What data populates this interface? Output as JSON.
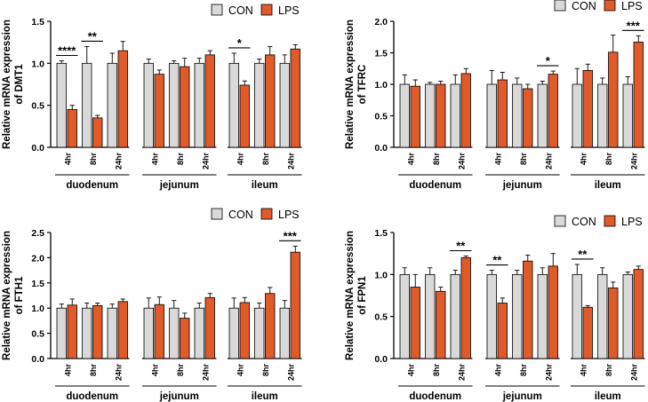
{
  "figure": {
    "legend": {
      "con": "CON",
      "lps": "LPS"
    },
    "colors": {
      "con": "#d9d9d9",
      "lps": "#e05a2a",
      "axis": "#000000"
    }
  },
  "chart_data": [
    {
      "id": "dmt1",
      "type": "bar",
      "ylabel_line1": "Relative mRNA expression",
      "ylabel_line2": "of DMT1",
      "ylim": [
        0,
        1.5
      ],
      "yticks": [
        "0.0",
        "0.5",
        "1.0",
        "1.5"
      ],
      "ytick_values": [
        0,
        0.5,
        1.0,
        1.5
      ],
      "groups": [
        {
          "name": "duodenum",
          "timepoints": [
            "4hr",
            "8hr",
            "24hr"
          ]
        },
        {
          "name": "jejunum",
          "timepoints": [
            "4hr",
            "8hr",
            "24hr"
          ]
        },
        {
          "name": "ileum",
          "timepoints": [
            "4hr",
            "8hr",
            "24hr"
          ]
        }
      ],
      "series": [
        {
          "name": "CON",
          "values": [
            1.0,
            1.0,
            1.0,
            1.0,
            1.0,
            1.0,
            1.0,
            1.0,
            1.0
          ],
          "errors": [
            0.03,
            0.2,
            0.12,
            0.05,
            0.03,
            0.06,
            0.12,
            0.05,
            0.1
          ]
        },
        {
          "name": "LPS",
          "values": [
            0.45,
            0.35,
            1.15,
            0.87,
            0.96,
            1.1,
            0.74,
            1.1,
            1.17
          ],
          "errors": [
            0.05,
            0.03,
            0.11,
            0.05,
            0.1,
            0.05,
            0.05,
            0.1,
            0.05
          ]
        }
      ],
      "significance": [
        {
          "bar_index": 0,
          "label": "****"
        },
        {
          "bar_index": 1,
          "label": "**"
        },
        {
          "bar_index": 6,
          "label": "*"
        }
      ]
    },
    {
      "id": "tfrc",
      "type": "bar",
      "ylabel_line1": "Relative mRNA expression",
      "ylabel_line2": "of TFRC",
      "ylim": [
        0,
        2.0
      ],
      "yticks": [
        "0.0",
        "0.5",
        "1.0",
        "1.5",
        "2.0"
      ],
      "ytick_values": [
        0,
        0.5,
        1.0,
        1.5,
        2.0
      ],
      "groups": [
        {
          "name": "duodenum",
          "timepoints": [
            "4hr",
            "8hr",
            "24hr"
          ]
        },
        {
          "name": "jejunum",
          "timepoints": [
            "4hr",
            "8hr",
            "24hr"
          ]
        },
        {
          "name": "ileum",
          "timepoints": [
            "4hr",
            "8hr",
            "24hr"
          ]
        }
      ],
      "series": [
        {
          "name": "CON",
          "values": [
            1.0,
            1.0,
            1.0,
            1.0,
            1.0,
            1.0,
            1.0,
            1.0,
            1.0
          ],
          "errors": [
            0.15,
            0.03,
            0.15,
            0.22,
            0.1,
            0.05,
            0.25,
            0.1,
            0.12
          ]
        },
        {
          "name": "LPS",
          "values": [
            0.97,
            1.0,
            1.17,
            1.07,
            0.93,
            1.16,
            1.22,
            1.51,
            1.67
          ],
          "errors": [
            0.1,
            0.05,
            0.08,
            0.12,
            0.07,
            0.05,
            0.1,
            0.27,
            0.1
          ]
        }
      ],
      "significance": [
        {
          "bar_index": 5,
          "label": "*"
        },
        {
          "bar_index": 8,
          "label": "***"
        }
      ]
    },
    {
      "id": "fth1",
      "type": "bar",
      "ylabel_line1": "Relative mRNA expression",
      "ylabel_line2": "of FTH1",
      "ylim": [
        0,
        2.5
      ],
      "yticks": [
        "0.0",
        "0.5",
        "1.0",
        "1.5",
        "2.0",
        "2.5"
      ],
      "ytick_values": [
        0,
        0.5,
        1.0,
        1.5,
        2.0,
        2.5
      ],
      "groups": [
        {
          "name": "duodenum",
          "timepoints": [
            "4hr",
            "8hr",
            "24hr"
          ]
        },
        {
          "name": "jejunum",
          "timepoints": [
            "4hr",
            "8hr",
            "24hr"
          ]
        },
        {
          "name": "ileum",
          "timepoints": [
            "4hr",
            "8hr",
            "24hr"
          ]
        }
      ],
      "series": [
        {
          "name": "CON",
          "values": [
            1.0,
            1.0,
            1.0,
            1.0,
            1.0,
            1.0,
            1.0,
            1.0,
            1.0
          ],
          "errors": [
            0.08,
            0.1,
            0.08,
            0.2,
            0.15,
            0.1,
            0.2,
            0.1,
            0.15
          ]
        },
        {
          "name": "LPS",
          "values": [
            1.06,
            1.05,
            1.13,
            1.07,
            0.8,
            1.21,
            1.11,
            1.29,
            2.11
          ],
          "errors": [
            0.12,
            0.05,
            0.05,
            0.15,
            0.1,
            0.08,
            0.1,
            0.12,
            0.12
          ]
        }
      ],
      "significance": [
        {
          "bar_index": 8,
          "label": "***"
        }
      ]
    },
    {
      "id": "fpn1",
      "type": "bar",
      "ylabel_line1": "Relative mRNA expression",
      "ylabel_line2": "of FPN1",
      "ylim": [
        0,
        1.5
      ],
      "yticks": [
        "0.0",
        "0.5",
        "1.0",
        "1.5"
      ],
      "ytick_values": [
        0,
        0.5,
        1.0,
        1.5
      ],
      "groups": [
        {
          "name": "duodenum",
          "timepoints": [
            "4hr",
            "8hr",
            "24hr"
          ]
        },
        {
          "name": "jejunum",
          "timepoints": [
            "4hr",
            "8hr",
            "24hr"
          ]
        },
        {
          "name": "ileum",
          "timepoints": [
            "4hr",
            "8hr",
            "24hr"
          ]
        }
      ],
      "series": [
        {
          "name": "CON",
          "values": [
            1.0,
            1.0,
            1.0,
            1.0,
            1.0,
            1.0,
            1.0,
            1.0,
            1.0
          ],
          "errors": [
            0.08,
            0.08,
            0.05,
            0.05,
            0.05,
            0.08,
            0.12,
            0.08,
            0.03
          ]
        },
        {
          "name": "LPS",
          "values": [
            0.85,
            0.8,
            1.2,
            0.66,
            1.16,
            1.1,
            0.61,
            0.84,
            1.06
          ],
          "errors": [
            0.15,
            0.05,
            0.02,
            0.06,
            0.07,
            0.15,
            0.02,
            0.07,
            0.04
          ]
        }
      ],
      "significance": [
        {
          "bar_index": 2,
          "label": "**"
        },
        {
          "bar_index": 3,
          "label": "**"
        },
        {
          "bar_index": 6,
          "label": "**"
        }
      ]
    }
  ]
}
